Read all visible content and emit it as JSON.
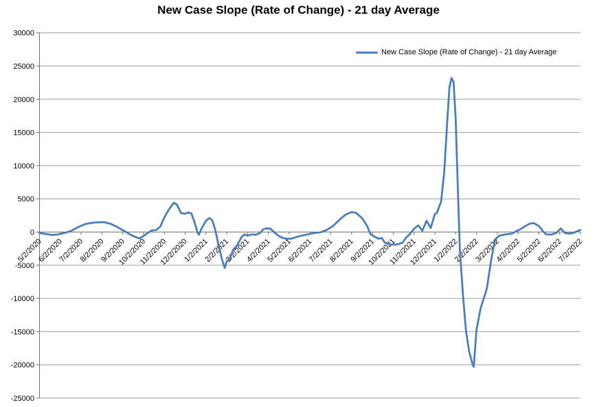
{
  "chart_data": {
    "type": "line",
    "title": "New Case Slope (Rate of Change) - 21 day Average",
    "xlabel": "",
    "ylabel": "",
    "ylim": [
      -25000,
      30000
    ],
    "y_tick_step": 5000,
    "grid": "horizontal",
    "x_tick_labels": [
      "5/2/2020",
      "6/2/2020",
      "7/2/2020",
      "8/2/2020",
      "9/2/2020",
      "10/2/2020",
      "11/2/2020",
      "12/2/2020",
      "1/2/2021",
      "2/2/2021",
      "3/2/2021",
      "4/2/2021",
      "5/2/2021",
      "6/2/2021",
      "7/2/2021",
      "8/2/2021",
      "9/2/2021",
      "10/2/2021",
      "11/2/2021",
      "12/2/2021",
      "1/2/2022",
      "2/2/2022",
      "3/2/2022",
      "4/2/2022",
      "5/2/2022",
      "6/2/2022",
      "7/2/2022"
    ],
    "legend": {
      "position": "top-right",
      "entries": [
        "New Case Slope (Rate of Change) - 21 day Average"
      ]
    },
    "colors": {
      "line": "#4a7ebc",
      "gridline": "#9d9d9d",
      "axis": "#6f6f6f",
      "text": "#000000",
      "background": "#ffffff"
    },
    "series": [
      {
        "name": "New Case Slope (Rate of Change) - 21 day Average",
        "x_is_index_into_x_tick_labels": true,
        "points": [
          [
            0.0,
            -150
          ],
          [
            0.3,
            -300
          ],
          [
            0.6,
            -450
          ],
          [
            0.9,
            -350
          ],
          [
            1.2,
            -150
          ],
          [
            1.5,
            150
          ],
          [
            1.9,
            800
          ],
          [
            2.2,
            1200
          ],
          [
            2.55,
            1400
          ],
          [
            3.0,
            1500
          ],
          [
            3.15,
            1450
          ],
          [
            3.4,
            1250
          ],
          [
            3.75,
            750
          ],
          [
            4.1,
            100
          ],
          [
            4.4,
            -450
          ],
          [
            4.65,
            -800
          ],
          [
            4.8,
            -950
          ],
          [
            5.0,
            -600
          ],
          [
            5.2,
            -150
          ],
          [
            5.4,
            250
          ],
          [
            5.6,
            300
          ],
          [
            5.8,
            800
          ],
          [
            6.0,
            2200
          ],
          [
            6.2,
            3300
          ],
          [
            6.45,
            4400
          ],
          [
            6.6,
            4150
          ],
          [
            6.8,
            2850
          ],
          [
            7.0,
            2750
          ],
          [
            7.15,
            2950
          ],
          [
            7.3,
            2800
          ],
          [
            7.45,
            1500
          ],
          [
            7.6,
            -100
          ],
          [
            7.66,
            -400
          ],
          [
            7.8,
            600
          ],
          [
            8.0,
            1700
          ],
          [
            8.16,
            2100
          ],
          [
            8.3,
            1800
          ],
          [
            8.45,
            300
          ],
          [
            8.6,
            -1900
          ],
          [
            8.75,
            -3900
          ],
          [
            8.9,
            -5400
          ],
          [
            9.0,
            -4400
          ],
          [
            9.15,
            -4100
          ],
          [
            9.3,
            -2700
          ],
          [
            9.5,
            -2000
          ],
          [
            9.7,
            -800
          ],
          [
            9.85,
            -350
          ],
          [
            10.0,
            -550
          ],
          [
            10.2,
            -350
          ],
          [
            10.4,
            -400
          ],
          [
            10.6,
            -150
          ],
          [
            10.75,
            400
          ],
          [
            10.9,
            550
          ],
          [
            11.1,
            500
          ],
          [
            11.3,
            -100
          ],
          [
            11.5,
            -600
          ],
          [
            11.7,
            -900
          ],
          [
            11.9,
            -1000
          ],
          [
            12.1,
            -1000
          ],
          [
            12.3,
            -800
          ],
          [
            12.6,
            -550
          ],
          [
            12.9,
            -350
          ],
          [
            13.2,
            -150
          ],
          [
            13.5,
            -50
          ],
          [
            13.8,
            300
          ],
          [
            14.1,
            900
          ],
          [
            14.4,
            1800
          ],
          [
            14.7,
            2600
          ],
          [
            15.0,
            3000
          ],
          [
            15.2,
            2900
          ],
          [
            15.5,
            2100
          ],
          [
            15.75,
            900
          ],
          [
            15.9,
            -300
          ],
          [
            16.1,
            -700
          ],
          [
            16.3,
            -1000
          ],
          [
            16.45,
            -900
          ],
          [
            16.6,
            -1600
          ],
          [
            16.8,
            -1850
          ],
          [
            17.0,
            -1900
          ],
          [
            17.2,
            -1850
          ],
          [
            17.45,
            -1600
          ],
          [
            17.6,
            -900
          ],
          [
            17.8,
            -300
          ],
          [
            18.0,
            500
          ],
          [
            18.2,
            1000
          ],
          [
            18.4,
            200
          ],
          [
            18.6,
            1700
          ],
          [
            18.8,
            600
          ],
          [
            19.0,
            2700
          ],
          [
            19.1,
            2900
          ],
          [
            19.3,
            4600
          ],
          [
            19.45,
            9000
          ],
          [
            19.6,
            17000
          ],
          [
            19.7,
            21800
          ],
          [
            19.8,
            23200
          ],
          [
            19.9,
            22600
          ],
          [
            20.0,
            17000
          ],
          [
            20.1,
            7000
          ],
          [
            20.2,
            -2500
          ],
          [
            20.35,
            -9500
          ],
          [
            20.5,
            -15000
          ],
          [
            20.65,
            -18000
          ],
          [
            20.8,
            -19800
          ],
          [
            20.87,
            -20300
          ],
          [
            21.0,
            -14700
          ],
          [
            21.2,
            -11500
          ],
          [
            21.5,
            -8500
          ],
          [
            21.7,
            -4300
          ],
          [
            21.9,
            -1100
          ],
          [
            22.1,
            -550
          ],
          [
            22.4,
            -350
          ],
          [
            22.7,
            -250
          ],
          [
            22.9,
            100
          ],
          [
            23.1,
            400
          ],
          [
            23.3,
            800
          ],
          [
            23.55,
            1250
          ],
          [
            23.75,
            1350
          ],
          [
            24.0,
            900
          ],
          [
            24.2,
            100
          ],
          [
            24.35,
            -350
          ],
          [
            24.6,
            -380
          ],
          [
            24.85,
            -100
          ],
          [
            25.05,
            550
          ],
          [
            25.25,
            -150
          ],
          [
            25.45,
            -250
          ],
          [
            25.65,
            -150
          ],
          [
            25.85,
            150
          ],
          [
            26.0,
            300
          ]
        ]
      }
    ]
  }
}
